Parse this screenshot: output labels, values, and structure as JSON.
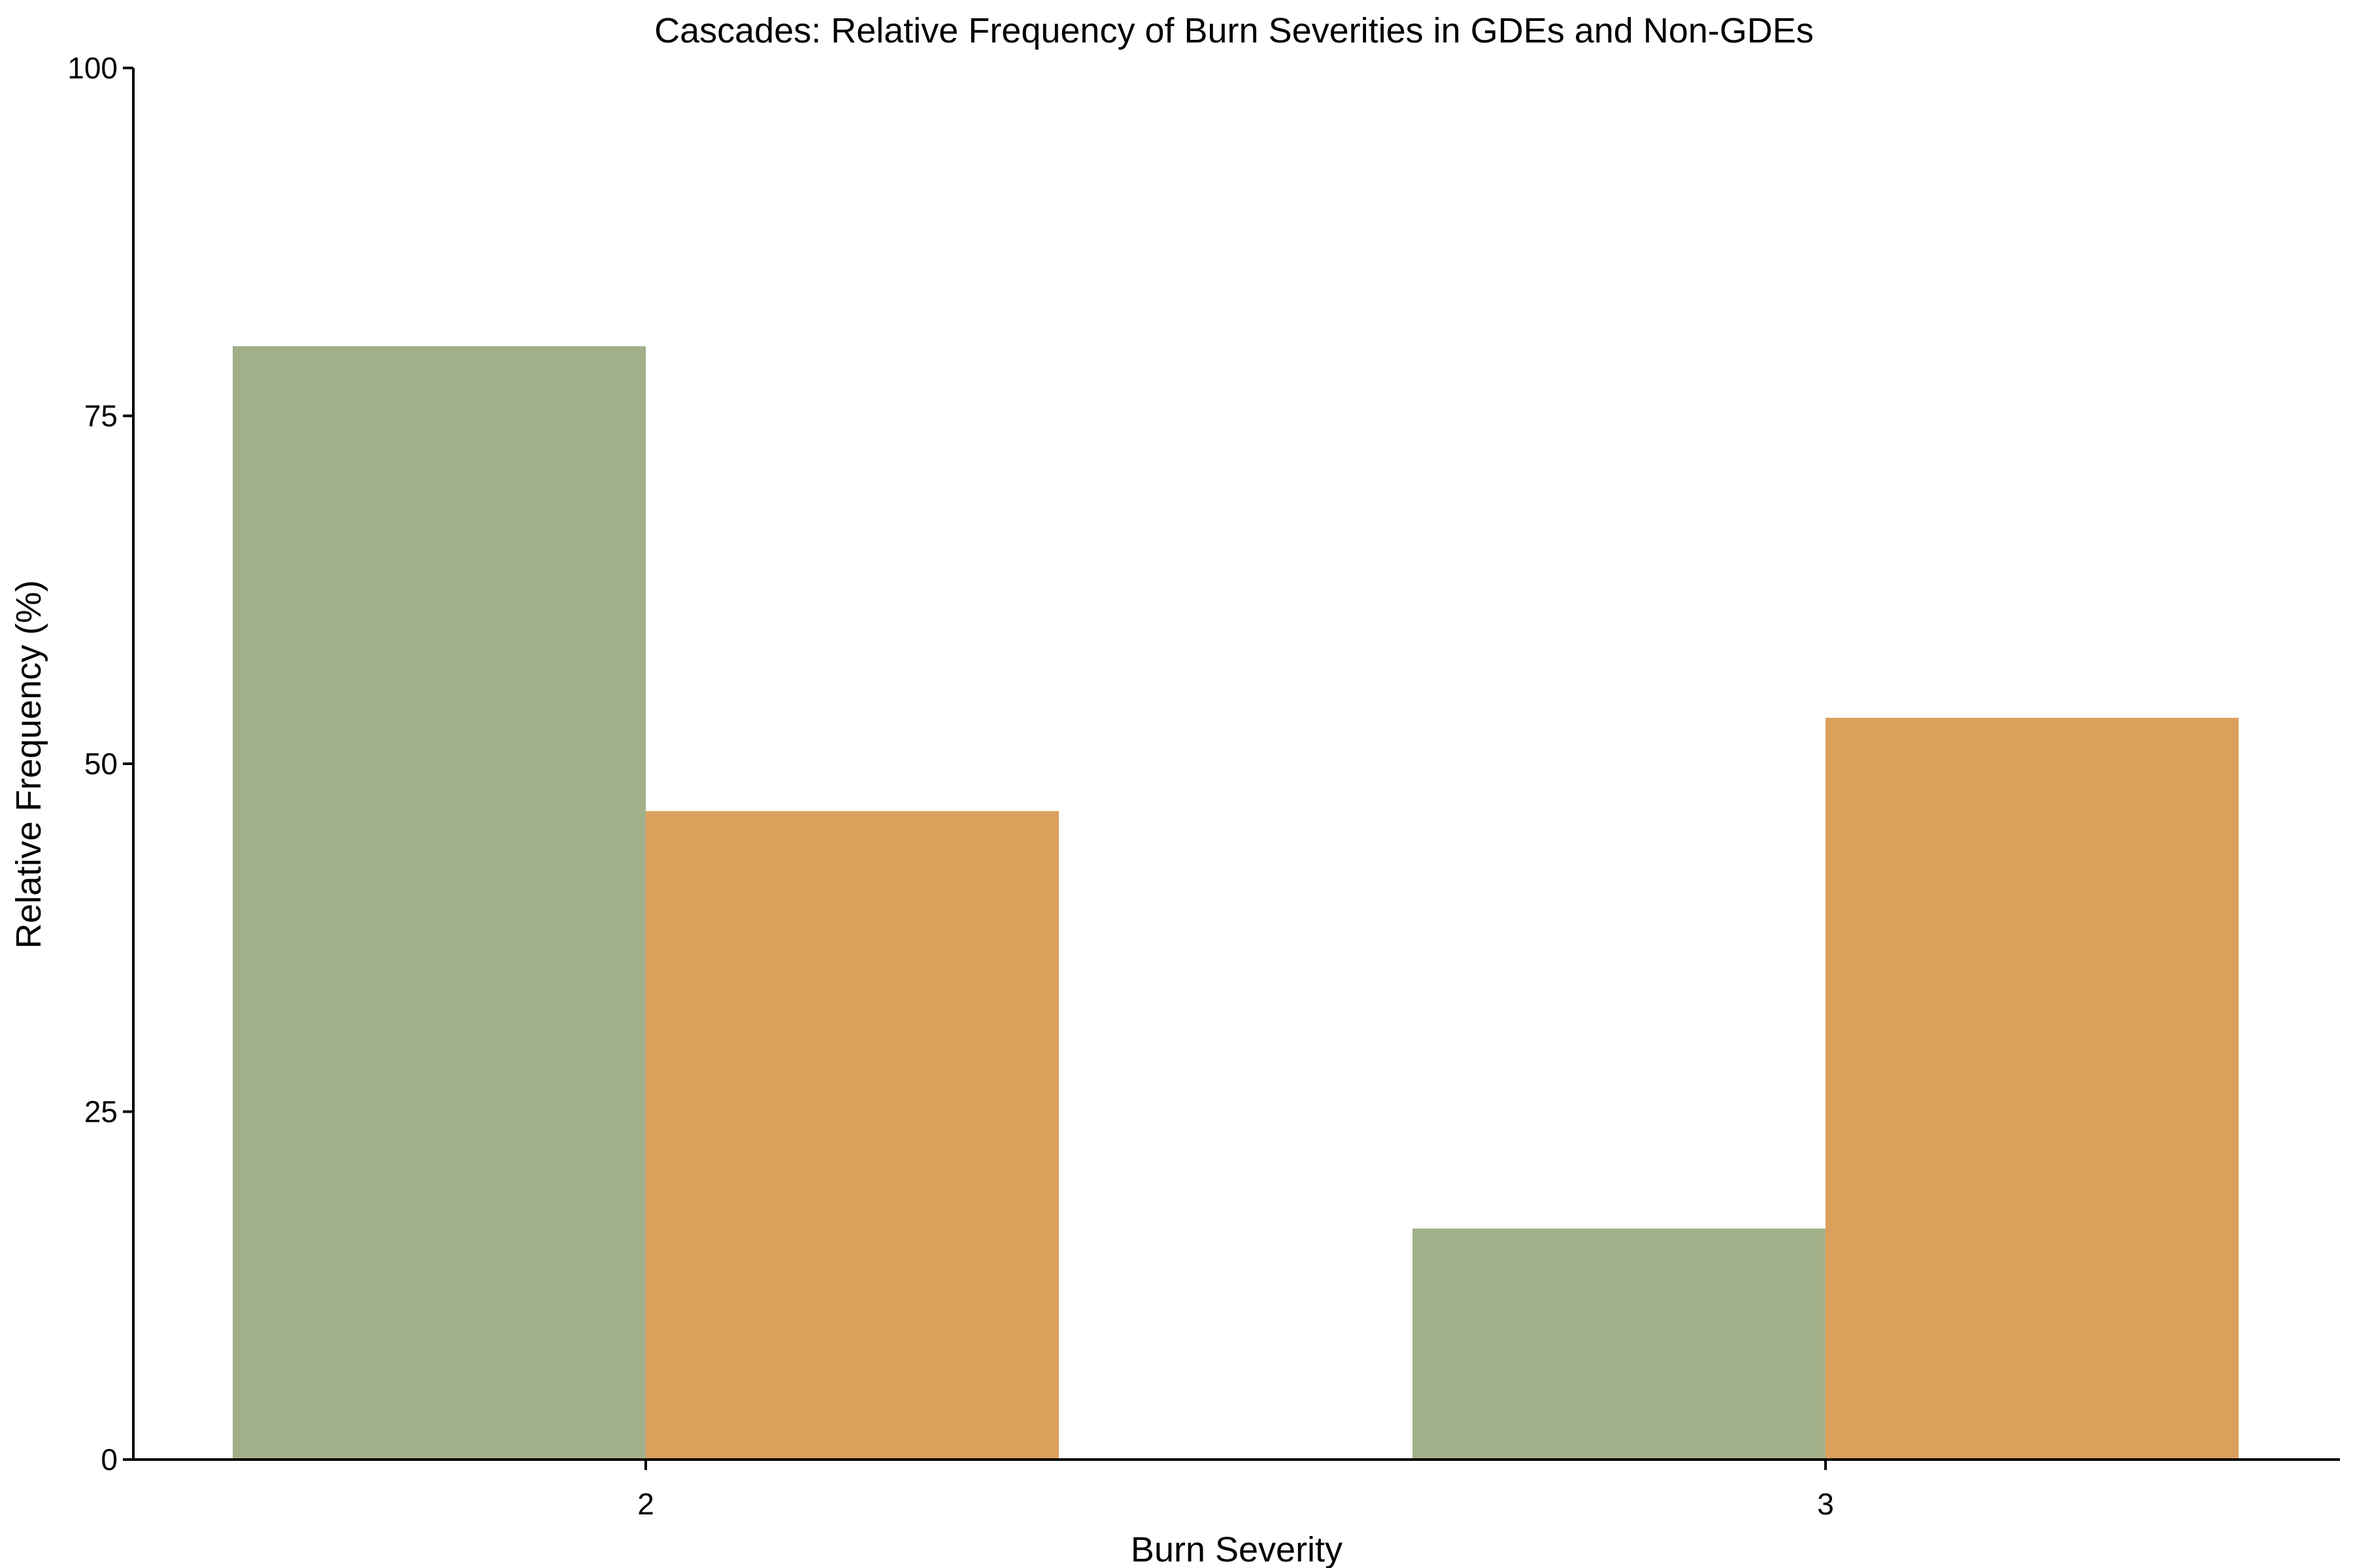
{
  "chart_data": {
    "type": "bar",
    "title": "Cascades: Relative Frequency of Burn Severities in GDEs and Non-GDEs",
    "xlabel": "Burn Severity",
    "ylabel": "Relative Frequency (%)",
    "categories": [
      "2",
      "3"
    ],
    "series": [
      {
        "values": [
          80.0,
          16.6
        ],
        "color": "#a2b089"
      },
      {
        "values": [
          46.6,
          53.3
        ],
        "color": "#dca05d"
      }
    ],
    "ylim": [
      0,
      100
    ],
    "yticks": [
      0,
      25,
      50,
      75,
      100
    ],
    "grid": false,
    "legend": "none"
  }
}
